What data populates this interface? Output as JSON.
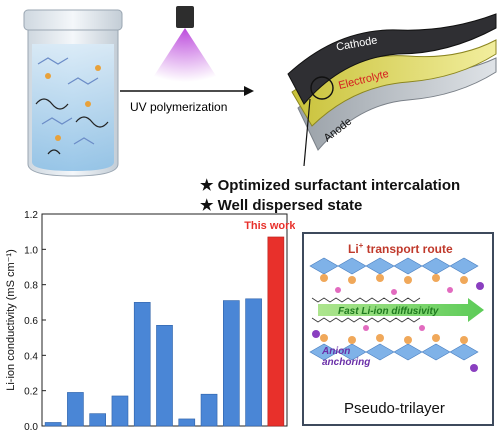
{
  "top": {
    "uv_label": "UV polymerization",
    "cathode_label": "Cathode",
    "electrolyte_label": "Electrolyte",
    "anode_label": "Anode"
  },
  "bullets": [
    "★ Optimized surfactant intercalation",
    "★ Well dispersed state"
  ],
  "panel": {
    "title_li": "Li",
    "title_sup": "+",
    "title_rest": " transport route",
    "fast_label": "Fast Li-ion diffusivity",
    "anion_label_1": "Anion",
    "anion_label_2": "anchoring",
    "caption": "Pseudo-trilayer"
  },
  "colors": {
    "bar_blue": "#4a86d6",
    "bar_red": "#e8302b",
    "this_work": "#e8302b"
  },
  "chart_data": {
    "type": "bar",
    "ylabel": "Li-ion conductivity (mS cm⁻¹)",
    "ylim": [
      0,
      1.2
    ],
    "yticks": [
      "0.0",
      "0.2",
      "0.4",
      "0.6",
      "0.8",
      "1.0",
      "1.2"
    ],
    "values": [
      0.02,
      0.19,
      0.07,
      0.17,
      0.7,
      0.57,
      0.04,
      0.18,
      0.71,
      0.72,
      1.07
    ],
    "highlight_index": 10,
    "annotation": "This work"
  }
}
